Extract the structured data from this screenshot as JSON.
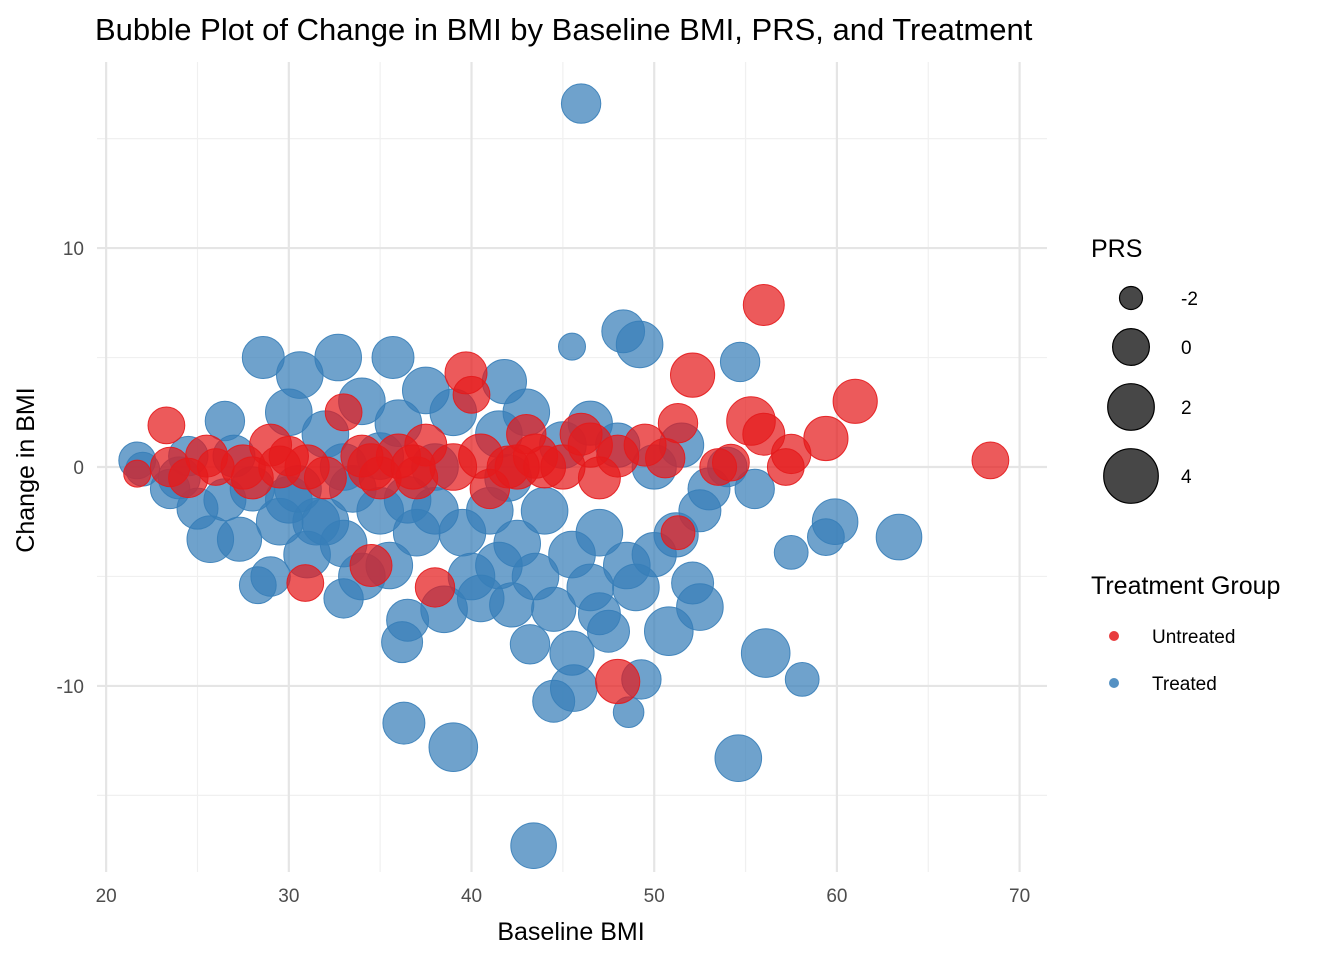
{
  "chart_data": {
    "type": "scatter",
    "subtype": "bubble",
    "title": "Bubble Plot of Change in BMI by Baseline BMI, PRS, and Treatment",
    "xlabel": "Baseline BMI",
    "ylabel": "Change in BMI",
    "xlim": [
      19.5,
      71.5
    ],
    "ylim": [
      -18.5,
      18.5
    ],
    "x_ticks": [
      20,
      30,
      40,
      50,
      60,
      70
    ],
    "x_tick_labels": [
      "20",
      "30",
      "40",
      "50",
      "60",
      "70"
    ],
    "y_ticks": [
      -10,
      0,
      10
    ],
    "y_tick_labels": [
      "-10",
      "0",
      "10"
    ],
    "grid": true,
    "size_legend": {
      "title": "PRS",
      "position": "right",
      "entries": [
        {
          "label": "-2",
          "value": -2
        },
        {
          "label": "0",
          "value": 0
        },
        {
          "label": "2",
          "value": 2
        },
        {
          "label": "4",
          "value": 4
        }
      ]
    },
    "color_legend": {
      "title": "Treatment Group",
      "position": "right",
      "entries": [
        {
          "label": "Untreated",
          "color": "#E41A1C"
        },
        {
          "label": "Treated",
          "color": "#377EB8"
        }
      ]
    },
    "series": [
      {
        "name": "Treated",
        "color": "#377EB8",
        "points": [
          [
            46.0,
            16.6,
            0.5
          ],
          [
            45.5,
            5.5,
            -1.5
          ],
          [
            48.3,
            6.2,
            1.2
          ],
          [
            49.2,
            5.6,
            2.0
          ],
          [
            54.7,
            4.8,
            0.5
          ],
          [
            28.6,
            5.0,
            1.0
          ],
          [
            32.7,
            5.0,
            2.0
          ],
          [
            35.7,
            5.0,
            1.0
          ],
          [
            30.6,
            4.2,
            2.0
          ],
          [
            41.8,
            3.9,
            1.5
          ],
          [
            63.4,
            -3.2,
            1.8
          ],
          [
            59.9,
            -2.5,
            1.8
          ],
          [
            59.4,
            -3.2,
            0.0
          ],
          [
            57.5,
            -3.9,
            -0.5
          ],
          [
            56.1,
            -8.5,
            2.5
          ],
          [
            58.1,
            -9.7,
            -0.5
          ],
          [
            54.6,
            -13.3,
            2.0
          ],
          [
            49.3,
            -9.7,
            0.5
          ],
          [
            48.6,
            -11.2,
            -1.0
          ],
          [
            44.5,
            -10.7,
            1.0
          ],
          [
            45.6,
            -10.1,
            2.0
          ],
          [
            43.4,
            -17.3,
            1.8
          ],
          [
            39.0,
            -12.8,
            2.5
          ],
          [
            36.3,
            -11.7,
            1.0
          ],
          [
            43.2,
            -8.1,
            0.5
          ],
          [
            36.2,
            -8.0,
            0.8
          ],
          [
            50.8,
            -7.5,
            2.5
          ],
          [
            52.5,
            -6.4,
            2.0
          ],
          [
            52.1,
            -5.3,
            1.0
          ],
          [
            51.2,
            -3.1,
            1.5
          ],
          [
            42.2,
            -6.3,
            1.5
          ],
          [
            47.0,
            -6.7,
            1.0
          ],
          [
            29.0,
            -5.0,
            0.5
          ],
          [
            28.3,
            -5.4,
            0.0
          ],
          [
            33.0,
            -6.0,
            0.5
          ],
          [
            25.7,
            -3.3,
            2.0
          ],
          [
            25.0,
            -1.9,
            0.8
          ],
          [
            23.5,
            -1.0,
            0.5
          ],
          [
            21.7,
            0.3,
            0.0
          ],
          [
            22.0,
            -0.1,
            -0.5
          ],
          [
            24.0,
            -0.5,
            1.0
          ],
          [
            26.5,
            2.1,
            0.5
          ],
          [
            27.3,
            -3.3,
            1.5
          ],
          [
            30.0,
            -1.5,
            2.0
          ],
          [
            31.5,
            -2.5,
            2.0
          ],
          [
            33.5,
            -1.0,
            2.0
          ],
          [
            35.0,
            -2.0,
            2.0
          ],
          [
            36.5,
            -1.5,
            2.0
          ],
          [
            38.0,
            -2.0,
            2.0
          ],
          [
            39.5,
            -3.0,
            2.0
          ],
          [
            41.0,
            -2.0,
            2.0
          ],
          [
            42.5,
            -3.5,
            2.0
          ],
          [
            44.0,
            -2.0,
            2.0
          ],
          [
            45.5,
            -4.0,
            2.0
          ],
          [
            47.0,
            -3.0,
            2.0
          ],
          [
            48.5,
            -4.5,
            2.0
          ],
          [
            49.0,
            -5.5,
            2.0
          ],
          [
            40.0,
            -5.0,
            2.0
          ],
          [
            38.5,
            -6.5,
            2.0
          ],
          [
            35.5,
            -4.5,
            2.0
          ],
          [
            33.0,
            -3.5,
            2.0
          ],
          [
            31.0,
            -4.0,
            2.0
          ],
          [
            29.5,
            -2.5,
            2.0
          ],
          [
            28.0,
            -1.0,
            1.5
          ],
          [
            27.0,
            0.5,
            1.0
          ],
          [
            30.0,
            2.5,
            2.0
          ],
          [
            32.0,
            1.5,
            2.0
          ],
          [
            34.0,
            3.0,
            2.0
          ],
          [
            36.0,
            2.0,
            2.0
          ],
          [
            37.5,
            3.5,
            2.0
          ],
          [
            39.0,
            2.5,
            2.0
          ],
          [
            41.5,
            1.5,
            2.0
          ],
          [
            43.0,
            2.5,
            2.0
          ],
          [
            45.0,
            1.0,
            2.0
          ],
          [
            46.5,
            2.0,
            1.5
          ],
          [
            48.0,
            1.0,
            1.5
          ],
          [
            50.0,
            0.0,
            1.5
          ],
          [
            51.5,
            1.0,
            1.5
          ],
          [
            53.0,
            -1.0,
            1.0
          ],
          [
            54.0,
            0.0,
            0.5
          ],
          [
            55.5,
            -1.0,
            0.5
          ],
          [
            52.5,
            -2.0,
            1.0
          ],
          [
            50.0,
            -4.0,
            1.5
          ],
          [
            46.5,
            -5.5,
            2.0
          ],
          [
            43.5,
            -5.0,
            2.0
          ],
          [
            41.5,
            -4.5,
            2.0
          ],
          [
            37.0,
            -3.0,
            2.0
          ],
          [
            34.0,
            -5.0,
            2.0
          ],
          [
            32.0,
            -2.5,
            2.0
          ],
          [
            30.5,
            -1.0,
            2.0
          ],
          [
            36.5,
            -7.0,
            1.0
          ],
          [
            44.5,
            -6.5,
            1.5
          ],
          [
            40.5,
            -6.0,
            2.0
          ],
          [
            47.5,
            -7.5,
            1.0
          ],
          [
            45.5,
            -8.5,
            1.5
          ],
          [
            42.0,
            -0.5,
            2.0
          ],
          [
            38.0,
            0.0,
            2.0
          ],
          [
            35.0,
            0.5,
            2.0
          ],
          [
            33.0,
            0.0,
            2.0
          ],
          [
            26.5,
            -1.5,
            1.0
          ],
          [
            24.5,
            0.5,
            0.5
          ]
        ]
      },
      {
        "name": "Untreated",
        "color": "#E41A1C",
        "points": [
          [
            68.4,
            0.3,
            0.0
          ],
          [
            61.0,
            3.0,
            1.5
          ],
          [
            56.0,
            7.4,
            0.8
          ],
          [
            52.1,
            4.2,
            1.5
          ],
          [
            55.3,
            2.1,
            2.5
          ],
          [
            59.4,
            1.3,
            1.5
          ],
          [
            56.0,
            1.5,
            1.0
          ],
          [
            57.5,
            0.6,
            0.5
          ],
          [
            57.2,
            0.0,
            0.0
          ],
          [
            54.2,
            0.2,
            0.0
          ],
          [
            51.3,
            2.0,
            0.5
          ],
          [
            50.6,
            0.4,
            0.5
          ],
          [
            48.0,
            -9.8,
            1.5
          ],
          [
            51.3,
            -3.0,
            -0.5
          ],
          [
            39.7,
            4.3,
            1.0
          ],
          [
            40.0,
            3.3,
            0.0
          ],
          [
            23.3,
            1.9,
            0.0
          ],
          [
            21.7,
            -0.3,
            -1.5
          ],
          [
            30.9,
            -5.3,
            0.0
          ],
          [
            34.5,
            -4.5,
            1.0
          ],
          [
            23.5,
            0.0,
            0.5
          ],
          [
            25.5,
            0.5,
            1.0
          ],
          [
            27.5,
            0.0,
            1.5
          ],
          [
            29.0,
            1.0,
            1.0
          ],
          [
            31.0,
            0.0,
            1.5
          ],
          [
            33.0,
            2.5,
            0.0
          ],
          [
            34.5,
            0.0,
            2.0
          ],
          [
            36.0,
            0.5,
            1.5
          ],
          [
            37.5,
            1.0,
            1.0
          ],
          [
            39.0,
            0.0,
            2.0
          ],
          [
            40.5,
            0.5,
            1.5
          ],
          [
            42.0,
            0.0,
            1.0
          ],
          [
            43.5,
            0.5,
            1.5
          ],
          [
            45.0,
            0.0,
            1.5
          ],
          [
            46.5,
            1.0,
            1.5
          ],
          [
            48.0,
            0.5,
            1.0
          ],
          [
            49.5,
            1.0,
            1.0
          ],
          [
            44.0,
            0.0,
            1.0
          ],
          [
            37.0,
            -0.5,
            1.0
          ],
          [
            32.0,
            -0.5,
            1.0
          ],
          [
            28.0,
            -0.5,
            1.0
          ],
          [
            35.0,
            -0.5,
            1.0
          ],
          [
            47.0,
            -0.5,
            1.0
          ],
          [
            41.0,
            -1.0,
            0.5
          ],
          [
            38.0,
            -5.5,
            0.5
          ],
          [
            26.0,
            0.0,
            0.0
          ],
          [
            30.0,
            0.5,
            0.5
          ],
          [
            43.0,
            1.5,
            0.5
          ],
          [
            46.0,
            1.5,
            1.0
          ],
          [
            53.5,
            0.0,
            0.0
          ],
          [
            42.5,
            0.0,
            1.5
          ],
          [
            36.8,
            0.0,
            1.5
          ],
          [
            34.0,
            0.5,
            1.0
          ],
          [
            29.5,
            0.0,
            1.0
          ],
          [
            24.5,
            -0.5,
            0.5
          ]
        ]
      }
    ]
  }
}
